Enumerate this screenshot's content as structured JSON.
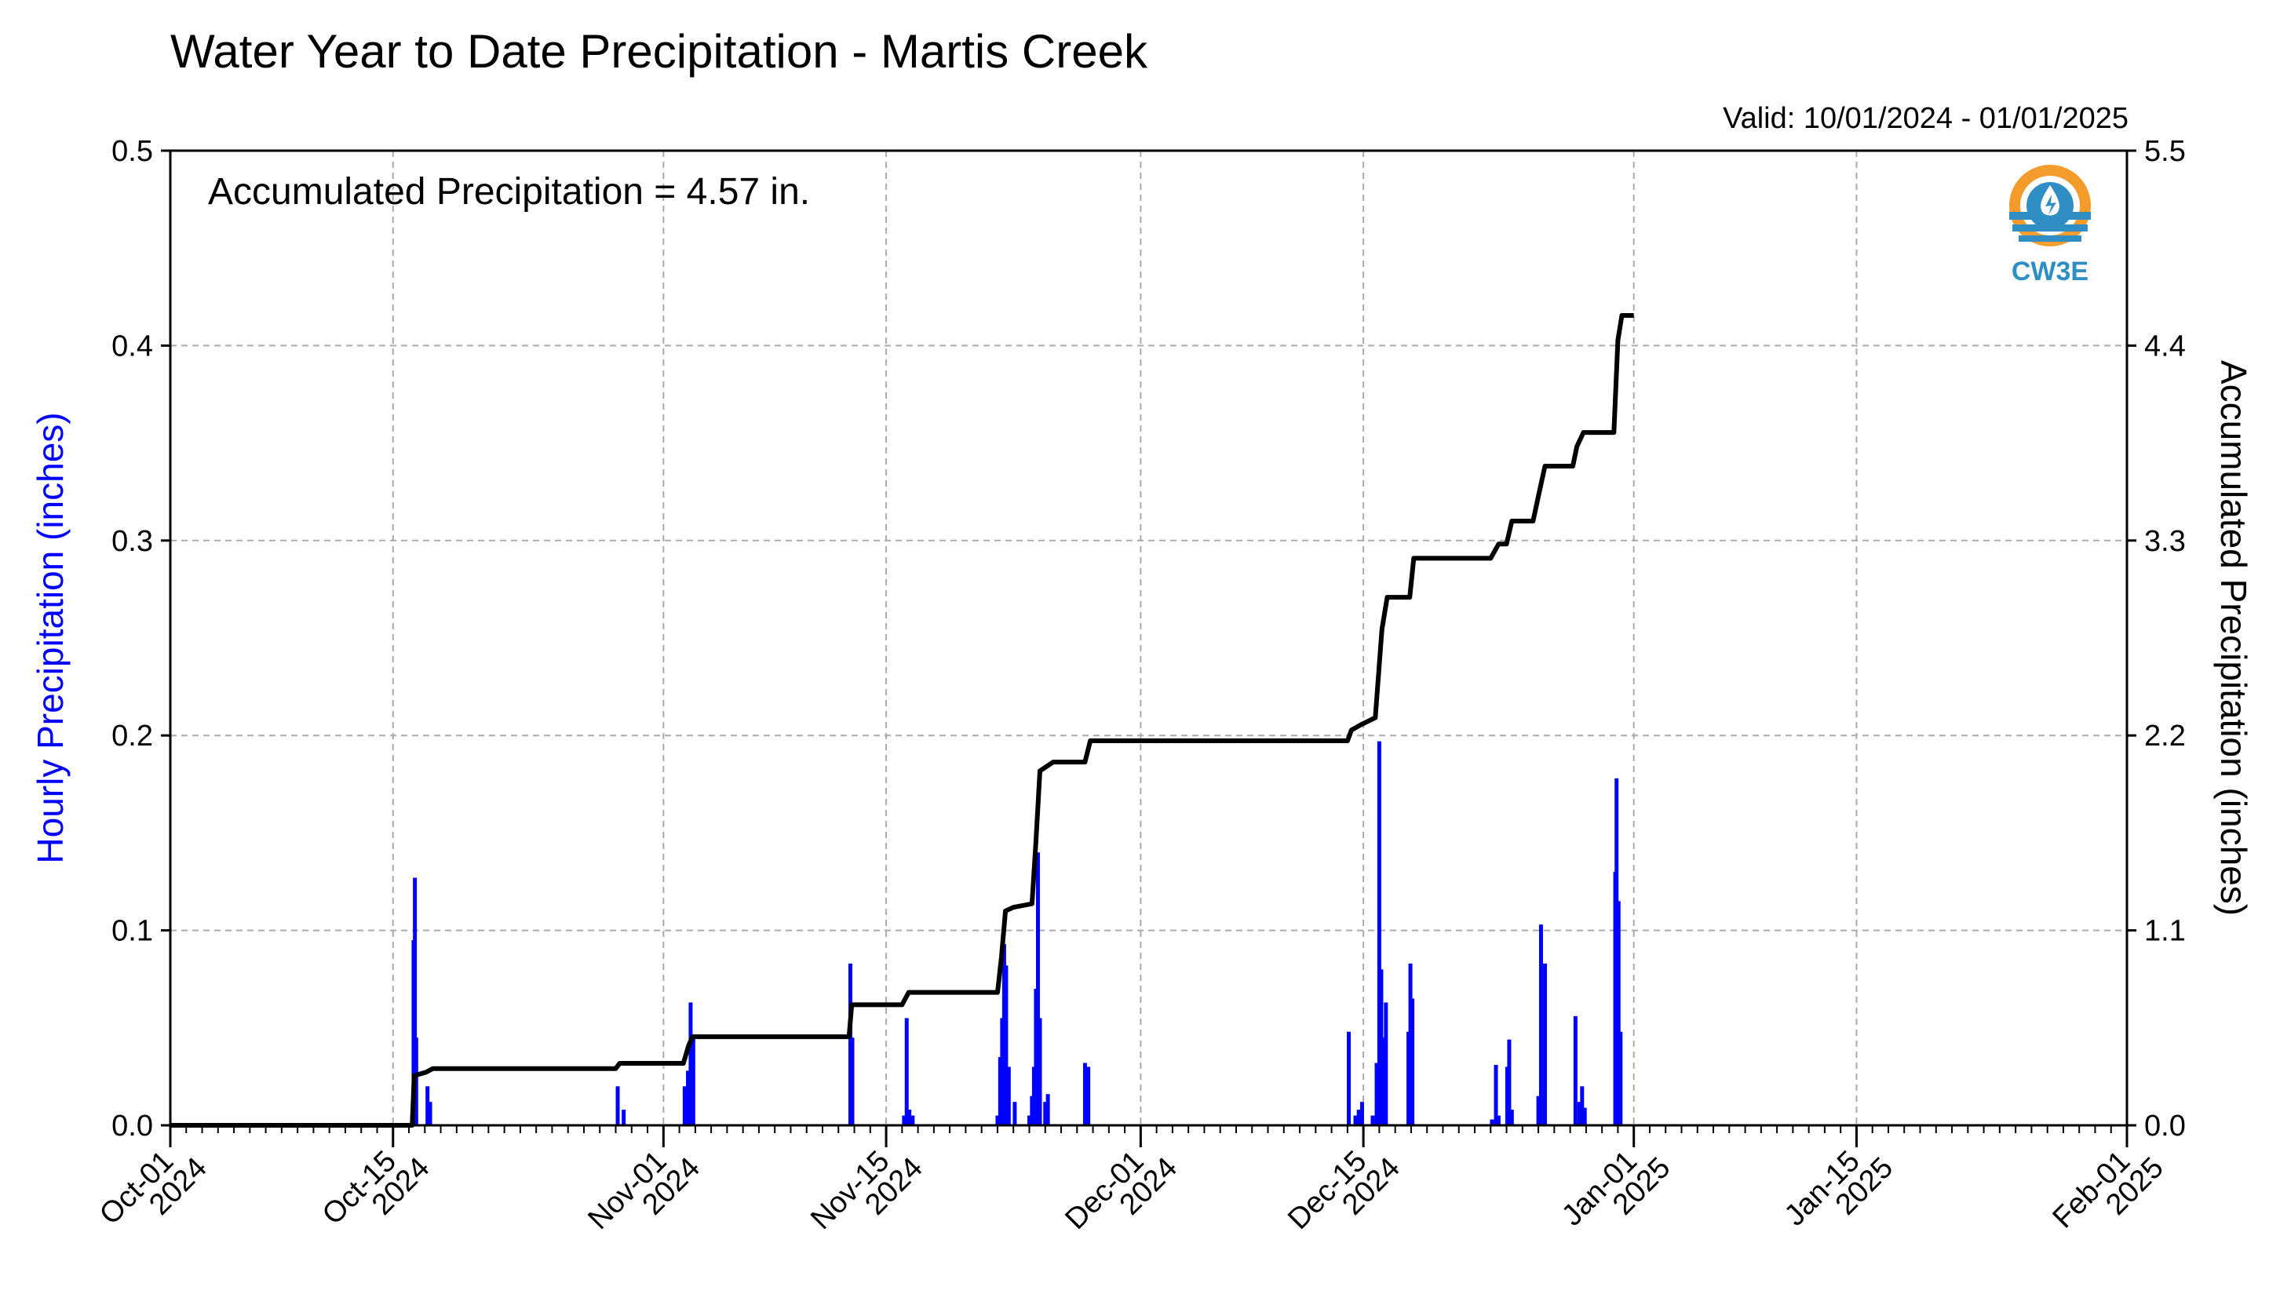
{
  "title": "Water Year to Date Precipitation - Martis Creek",
  "valid_label": "Valid: 10/01/2024 - 01/01/2025",
  "annotation": "Accumulated Precipitation = 4.57 in.",
  "logo": {
    "text": "CW3E",
    "icon": "cw3e-water-drop-logo"
  },
  "colors": {
    "bars": "#0000ff",
    "line": "#000000",
    "grid": "#aaaaaa",
    "left_axis_label": "#0000ff"
  },
  "chart_data": {
    "type": "bar",
    "xlim": [
      "2024-10-01",
      "2025-02-01"
    ],
    "x_ticks": [
      {
        "date": "2024-10-01",
        "label1": "Oct-01",
        "label2": "2024"
      },
      {
        "date": "2024-10-15",
        "label1": "Oct-15",
        "label2": "2024"
      },
      {
        "date": "2024-11-01",
        "label1": "Nov-01",
        "label2": "2024"
      },
      {
        "date": "2024-11-15",
        "label1": "Nov-15",
        "label2": "2024"
      },
      {
        "date": "2024-12-01",
        "label1": "Dec-01",
        "label2": "2024"
      },
      {
        "date": "2024-12-15",
        "label1": "Dec-15",
        "label2": "2024"
      },
      {
        "date": "2025-01-01",
        "label1": "Jan-01",
        "label2": "2025"
      },
      {
        "date": "2025-01-15",
        "label1": "Jan-15",
        "label2": "2025"
      },
      {
        "date": "2025-02-01",
        "label1": "Feb-01",
        "label2": "2025"
      }
    ],
    "grid": true,
    "y_left": {
      "label": "Hourly Precipitation (inches)",
      "lim": [
        0,
        0.5
      ],
      "ticks": [
        "0.0",
        "0.1",
        "0.2",
        "0.3",
        "0.4",
        "0.5"
      ]
    },
    "y_right": {
      "label": "Accumulated Precipitation (inches)",
      "lim": [
        0,
        5.5
      ],
      "ticks": [
        "0.0",
        "1.1",
        "2.2",
        "3.3",
        "4.4",
        "5.5"
      ]
    },
    "series": [
      {
        "type": "bar",
        "axis": "left",
        "color": "#0000ff",
        "points": [
          [
            "2024-10-16T07:00",
            0.095
          ],
          [
            "2024-10-16T09:00",
            0.127
          ],
          [
            "2024-10-16T11:00",
            0.045
          ],
          [
            "2024-10-17T04:00",
            0.02
          ],
          [
            "2024-10-17T08:00",
            0.012
          ],
          [
            "2024-10-29T03:00",
            0.02
          ],
          [
            "2024-10-29T12:00",
            0.008
          ],
          [
            "2024-11-02T08:00",
            0.02
          ],
          [
            "2024-11-02T13:00",
            0.028
          ],
          [
            "2024-11-02T17:00",
            0.063
          ],
          [
            "2024-11-02T21:00",
            0.045
          ],
          [
            "2024-11-12T18:00",
            0.083
          ],
          [
            "2024-11-12T21:00",
            0.045
          ],
          [
            "2024-11-16T03:00",
            0.005
          ],
          [
            "2024-11-16T07:00",
            0.055
          ],
          [
            "2024-11-16T11:00",
            0.008
          ],
          [
            "2024-11-16T16:00",
            0.005
          ],
          [
            "2024-11-22T00:00",
            0.005
          ],
          [
            "2024-11-22T04:00",
            0.035
          ],
          [
            "2024-11-22T07:00",
            0.055
          ],
          [
            "2024-11-22T10:00",
            0.093
          ],
          [
            "2024-11-22T13:00",
            0.082
          ],
          [
            "2024-11-22T17:00",
            0.03
          ],
          [
            "2024-11-23T02:00",
            0.012
          ],
          [
            "2024-11-24T00:00",
            0.005
          ],
          [
            "2024-11-24T04:00",
            0.015
          ],
          [
            "2024-11-24T07:00",
            0.03
          ],
          [
            "2024-11-24T10:00",
            0.07
          ],
          [
            "2024-11-24T13:00",
            0.14
          ],
          [
            "2024-11-24T16:00",
            0.055
          ],
          [
            "2024-11-25T00:00",
            0.012
          ],
          [
            "2024-11-25T04:00",
            0.016
          ],
          [
            "2024-11-27T12:00",
            0.032
          ],
          [
            "2024-11-27T17:00",
            0.03
          ],
          [
            "2024-12-14T02:00",
            0.048
          ],
          [
            "2024-12-14T12:00",
            0.005
          ],
          [
            "2024-12-14T17:00",
            0.008
          ],
          [
            "2024-12-14T22:00",
            0.012
          ],
          [
            "2024-12-15T14:00",
            0.005
          ],
          [
            "2024-12-15T20:00",
            0.032
          ],
          [
            "2024-12-16T00:00",
            0.197
          ],
          [
            "2024-12-16T03:00",
            0.08
          ],
          [
            "2024-12-16T06:00",
            0.045
          ],
          [
            "2024-12-16T10:00",
            0.063
          ],
          [
            "2024-12-17T20:00",
            0.048
          ],
          [
            "2024-12-17T23:00",
            0.083
          ],
          [
            "2024-12-18T02:00",
            0.065
          ],
          [
            "2024-12-23T02:00",
            0.003
          ],
          [
            "2024-12-23T08:00",
            0.031
          ],
          [
            "2024-12-23T12:00",
            0.005
          ],
          [
            "2024-12-24T01:00",
            0.03
          ],
          [
            "2024-12-24T04:00",
            0.044
          ],
          [
            "2024-12-24T08:00",
            0.008
          ],
          [
            "2024-12-26T00:00",
            0.015
          ],
          [
            "2024-12-26T04:00",
            0.103
          ],
          [
            "2024-12-26T10:00",
            0.083
          ],
          [
            "2024-12-28T08:00",
            0.056
          ],
          [
            "2024-12-28T14:00",
            0.012
          ],
          [
            "2024-12-28T18:00",
            0.02
          ],
          [
            "2024-12-28T22:00",
            0.009
          ],
          [
            "2024-12-30T20:00",
            0.13
          ],
          [
            "2024-12-30T22:00",
            0.178
          ],
          [
            "2024-12-31T01:00",
            0.115
          ],
          [
            "2024-12-31T04:00",
            0.048
          ]
        ]
      },
      {
        "type": "line",
        "axis": "right",
        "color": "#000000",
        "points": [
          [
            "2024-10-01T00:00",
            0.0
          ],
          [
            "2024-10-16T05:00",
            0.0
          ],
          [
            "2024-10-16T08:00",
            0.28
          ],
          [
            "2024-10-17T02:00",
            0.3
          ],
          [
            "2024-10-17T12:00",
            0.32
          ],
          [
            "2024-10-29T00:00",
            0.32
          ],
          [
            "2024-10-29T06:00",
            0.35
          ],
          [
            "2024-11-02T06:00",
            0.35
          ],
          [
            "2024-11-02T14:00",
            0.45
          ],
          [
            "2024-11-02T20:00",
            0.5
          ],
          [
            "2024-11-12T16:00",
            0.5
          ],
          [
            "2024-11-12T20:00",
            0.68
          ],
          [
            "2024-11-16T00:00",
            0.68
          ],
          [
            "2024-11-16T10:00",
            0.75
          ],
          [
            "2024-11-22T00:00",
            0.75
          ],
          [
            "2024-11-22T06:00",
            0.95
          ],
          [
            "2024-11-22T12:00",
            1.21
          ],
          [
            "2024-11-23T00:00",
            1.23
          ],
          [
            "2024-11-24T04:00",
            1.25
          ],
          [
            "2024-11-24T10:00",
            1.6
          ],
          [
            "2024-11-24T16:00",
            2.0
          ],
          [
            "2024-11-25T12:00",
            2.05
          ],
          [
            "2024-11-27T12:00",
            2.05
          ],
          [
            "2024-11-27T20:00",
            2.17
          ],
          [
            "2024-12-14T00:00",
            2.17
          ],
          [
            "2024-12-14T06:00",
            2.23
          ],
          [
            "2024-12-14T20:00",
            2.26
          ],
          [
            "2024-12-15T18:00",
            2.3
          ],
          [
            "2024-12-16T00:00",
            2.6
          ],
          [
            "2024-12-16T04:00",
            2.8
          ],
          [
            "2024-12-16T12:00",
            2.98
          ],
          [
            "2024-12-17T22:00",
            2.98
          ],
          [
            "2024-12-18T04:00",
            3.2
          ],
          [
            "2024-12-23T00:00",
            3.2
          ],
          [
            "2024-12-23T12:00",
            3.28
          ],
          [
            "2024-12-24T00:00",
            3.28
          ],
          [
            "2024-12-24T08:00",
            3.41
          ],
          [
            "2024-12-25T16:00",
            3.41
          ],
          [
            "2024-12-26T00:00",
            3.55
          ],
          [
            "2024-12-26T10:00",
            3.72
          ],
          [
            "2024-12-28T04:00",
            3.72
          ],
          [
            "2024-12-28T10:00",
            3.83
          ],
          [
            "2024-12-28T20:00",
            3.91
          ],
          [
            "2024-12-30T18:00",
            3.91
          ],
          [
            "2024-12-31T00:00",
            4.43
          ],
          [
            "2024-12-31T06:00",
            4.57
          ],
          [
            "2025-01-01T00:00",
            4.57
          ]
        ]
      }
    ]
  }
}
